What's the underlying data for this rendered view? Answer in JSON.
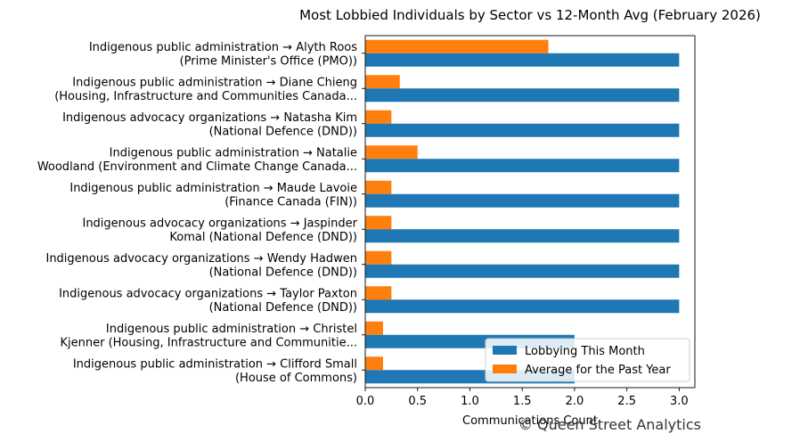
{
  "chart_data": {
    "type": "bar",
    "orientation": "horizontal",
    "title": "Most Lobbied Individuals by Sector vs 12-Month Avg (February 2026)",
    "xlabel": "Communications Count",
    "ylabel": "",
    "xlim": [
      0,
      3.15
    ],
    "xticks": [
      "0.0",
      "0.5",
      "1.0",
      "1.5",
      "2.0",
      "2.5",
      "3.0"
    ],
    "categories": [
      [
        "Indigenous public administration → Alyth Roos",
        "(Prime Minister's Office (PMO))"
      ],
      [
        "Indigenous public administration → Diane Chieng",
        "(Housing, Infrastructure and Communities Canada..."
      ],
      [
        "Indigenous advocacy organizations → Natasha Kim",
        "(National Defence (DND))"
      ],
      [
        "Indigenous public administration → Natalie",
        "Woodland (Environment and Climate Change Canada..."
      ],
      [
        "Indigenous public administration → Maude Lavoie",
        "(Finance Canada (FIN))"
      ],
      [
        "Indigenous advocacy organizations → Jaspinder",
        "Komal (National Defence (DND))"
      ],
      [
        "Indigenous advocacy organizations → Wendy Hadwen",
        "(National Defence (DND))"
      ],
      [
        "Indigenous advocacy organizations → Taylor Paxton",
        "(National Defence (DND))"
      ],
      [
        "Indigenous public administration → Christel",
        "Kjenner (Housing, Infrastructure and Communitie..."
      ],
      [
        "Indigenous public administration → Clifford Small",
        "(House of Commons)"
      ]
    ],
    "series": [
      {
        "name": "Lobbying This Month",
        "color": "#1f77b4",
        "values": [
          3,
          3,
          3,
          3,
          3,
          3,
          3,
          3,
          2,
          2
        ]
      },
      {
        "name": "Average for the Past Year",
        "color": "#ff7f0e",
        "values": [
          1.75,
          0.33,
          0.25,
          0.5,
          0.25,
          0.25,
          0.25,
          0.25,
          0.17,
          0.17
        ]
      }
    ],
    "grid": false,
    "legend": "lower-right"
  },
  "watermark": "© Queen Street Analytics"
}
